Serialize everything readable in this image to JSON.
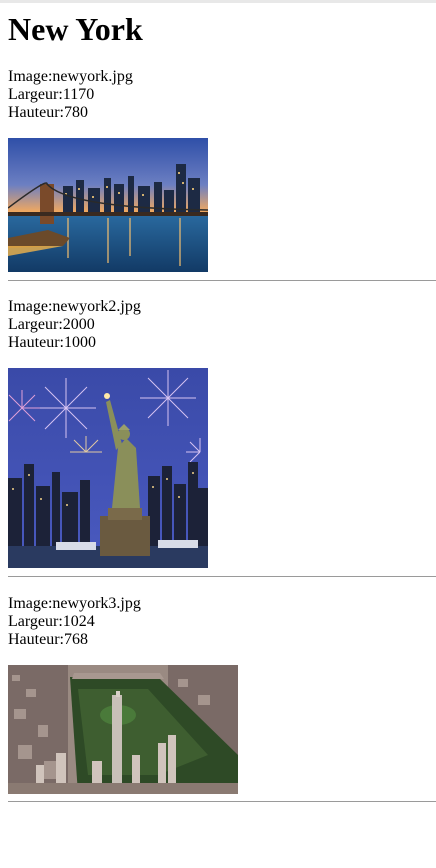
{
  "page": {
    "title": "New York"
  },
  "entries": [
    {
      "image_label": "Image:newyork.jpg",
      "width_label": "Largeur:1170",
      "height_label": "Hauteur:780"
    },
    {
      "image_label": "Image:newyork2.jpg",
      "width_label": "Largeur:2000",
      "height_label": "Hauteur:1000"
    },
    {
      "image_label": "Image:newyork3.jpg",
      "width_label": "Largeur:1024",
      "height_label": "Hauteur:768"
    }
  ]
}
